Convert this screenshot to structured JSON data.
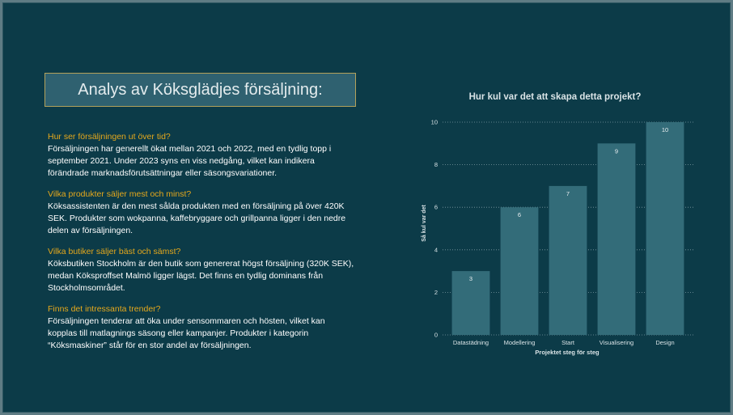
{
  "page": {
    "title": "Analys av Köksglädjes försäljning:"
  },
  "sections": [
    {
      "question": "Hur ser försäljningen ut över tid?",
      "answer": "Försäljningen har generellt ökat mellan 2021 och 2022, med en tydlig topp i september 2021. Under 2023 syns en viss nedgång, vilket kan indikera förändrade marknadsförutsättningar eller säsongsvariationer."
    },
    {
      "question": "Vilka produkter säljer mest och minst?",
      "answer": "Köksassistenten är den mest sålda produkten med en försäljning på över 420K SEK. Produkter som wokpanna, kaffebryggare och grillpanna ligger i den nedre delen av försäljningen."
    },
    {
      "question": "Vilka butiker säljer bäst och sämst?",
      "answer": "Köksbutiken Stockholm är den butik som genererat högst försäljning (320K SEK), medan Köksproffset Malmö ligger lägst. Det finns en tydlig dominans från Stockholmsområdet."
    },
    {
      "question": "Finns det intressanta trender?",
      "answer": "Försäljningen tenderar att öka under sensommaren och hösten, vilket kan kopplas till matlagnings säsong eller kampanjer. Produkter i kategorin “Köksmaskiner” står för en stor andel av försäljningen."
    }
  ],
  "colors": {
    "background": "#0c3b48",
    "title_box": "#2f6170",
    "question": "#e5a81c",
    "bar": "#336c79",
    "grid": "#7d9aa2"
  },
  "chart_data": {
    "type": "bar",
    "title": "Hur kul var det att skapa detta projekt?",
    "xlabel": "Projektet steg för steg",
    "ylabel": "Så kul var det",
    "categories": [
      "Datastädning",
      "Modellering",
      "Start",
      "Visualisering",
      "Design"
    ],
    "values": [
      3,
      6,
      7,
      9,
      10
    ],
    "yticks": [
      0,
      2,
      4,
      6,
      8,
      10
    ],
    "ylim": [
      0,
      10
    ],
    "grid": true,
    "data_labels": true
  }
}
